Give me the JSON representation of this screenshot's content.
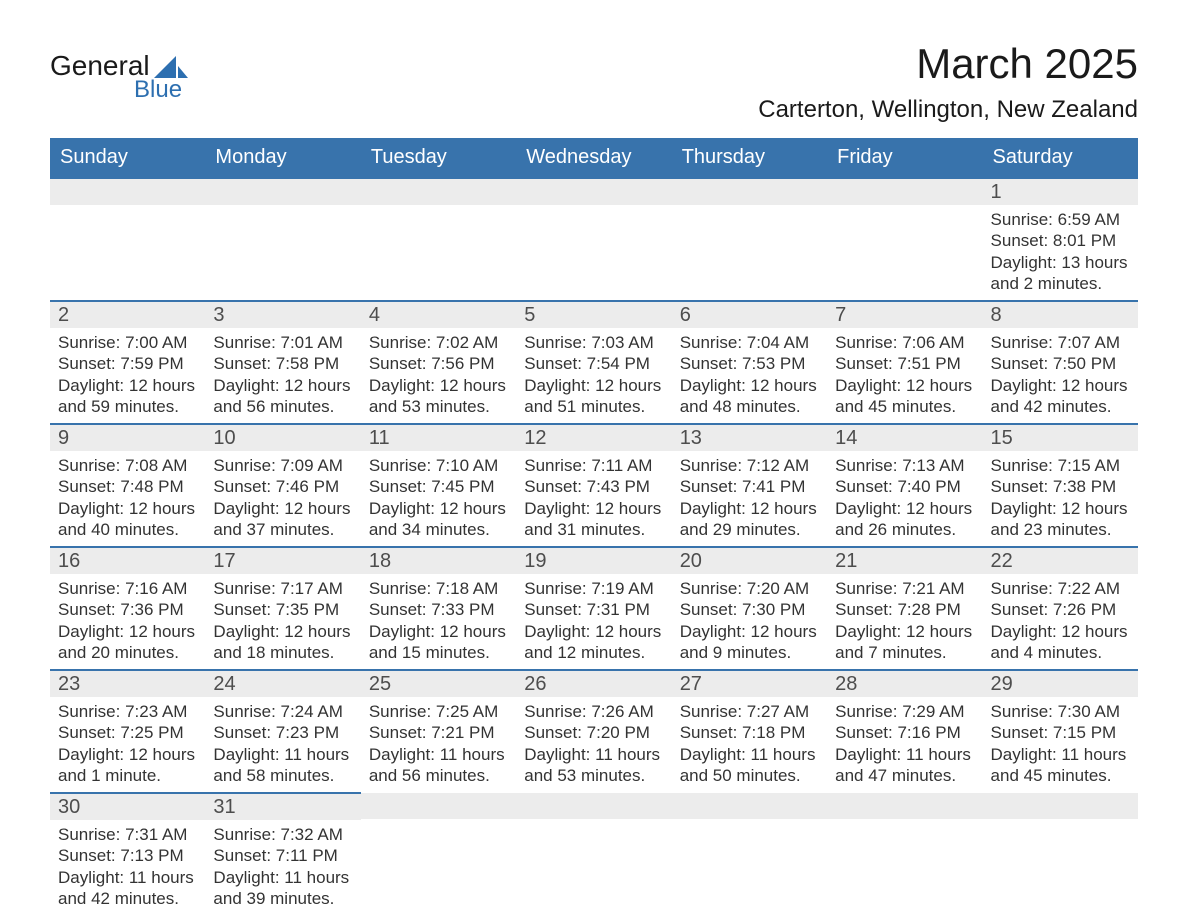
{
  "logo": {
    "text1": "General",
    "text2": "Blue",
    "accent_color": "#2d6fb0"
  },
  "header": {
    "month_title": "March 2025",
    "location": "Carterton, Wellington, New Zealand"
  },
  "colors": {
    "header_bg": "#3873ac",
    "header_text": "#ffffff",
    "daynum_bg": "#ececec",
    "daynum_text": "#4d4d4d",
    "body_text": "#333333",
    "row_border": "#3873ac",
    "page_bg": "#ffffff"
  },
  "typography": {
    "month_title_fontsize": 42,
    "location_fontsize": 24,
    "dayheader_fontsize": 20,
    "daynum_fontsize": 20,
    "cell_fontsize": 17
  },
  "day_headers": [
    "Sunday",
    "Monday",
    "Tuesday",
    "Wednesday",
    "Thursday",
    "Friday",
    "Saturday"
  ],
  "weeks": [
    [
      null,
      null,
      null,
      null,
      null,
      null,
      {
        "n": "1",
        "sunrise": "Sunrise: 6:59 AM",
        "sunset": "Sunset: 8:01 PM",
        "daylight": "Daylight: 13 hours and 2 minutes."
      }
    ],
    [
      {
        "n": "2",
        "sunrise": "Sunrise: 7:00 AM",
        "sunset": "Sunset: 7:59 PM",
        "daylight": "Daylight: 12 hours and 59 minutes."
      },
      {
        "n": "3",
        "sunrise": "Sunrise: 7:01 AM",
        "sunset": "Sunset: 7:58 PM",
        "daylight": "Daylight: 12 hours and 56 minutes."
      },
      {
        "n": "4",
        "sunrise": "Sunrise: 7:02 AM",
        "sunset": "Sunset: 7:56 PM",
        "daylight": "Daylight: 12 hours and 53 minutes."
      },
      {
        "n": "5",
        "sunrise": "Sunrise: 7:03 AM",
        "sunset": "Sunset: 7:54 PM",
        "daylight": "Daylight: 12 hours and 51 minutes."
      },
      {
        "n": "6",
        "sunrise": "Sunrise: 7:04 AM",
        "sunset": "Sunset: 7:53 PM",
        "daylight": "Daylight: 12 hours and 48 minutes."
      },
      {
        "n": "7",
        "sunrise": "Sunrise: 7:06 AM",
        "sunset": "Sunset: 7:51 PM",
        "daylight": "Daylight: 12 hours and 45 minutes."
      },
      {
        "n": "8",
        "sunrise": "Sunrise: 7:07 AM",
        "sunset": "Sunset: 7:50 PM",
        "daylight": "Daylight: 12 hours and 42 minutes."
      }
    ],
    [
      {
        "n": "9",
        "sunrise": "Sunrise: 7:08 AM",
        "sunset": "Sunset: 7:48 PM",
        "daylight": "Daylight: 12 hours and 40 minutes."
      },
      {
        "n": "10",
        "sunrise": "Sunrise: 7:09 AM",
        "sunset": "Sunset: 7:46 PM",
        "daylight": "Daylight: 12 hours and 37 minutes."
      },
      {
        "n": "11",
        "sunrise": "Sunrise: 7:10 AM",
        "sunset": "Sunset: 7:45 PM",
        "daylight": "Daylight: 12 hours and 34 minutes."
      },
      {
        "n": "12",
        "sunrise": "Sunrise: 7:11 AM",
        "sunset": "Sunset: 7:43 PM",
        "daylight": "Daylight: 12 hours and 31 minutes."
      },
      {
        "n": "13",
        "sunrise": "Sunrise: 7:12 AM",
        "sunset": "Sunset: 7:41 PM",
        "daylight": "Daylight: 12 hours and 29 minutes."
      },
      {
        "n": "14",
        "sunrise": "Sunrise: 7:13 AM",
        "sunset": "Sunset: 7:40 PM",
        "daylight": "Daylight: 12 hours and 26 minutes."
      },
      {
        "n": "15",
        "sunrise": "Sunrise: 7:15 AM",
        "sunset": "Sunset: 7:38 PM",
        "daylight": "Daylight: 12 hours and 23 minutes."
      }
    ],
    [
      {
        "n": "16",
        "sunrise": "Sunrise: 7:16 AM",
        "sunset": "Sunset: 7:36 PM",
        "daylight": "Daylight: 12 hours and 20 minutes."
      },
      {
        "n": "17",
        "sunrise": "Sunrise: 7:17 AM",
        "sunset": "Sunset: 7:35 PM",
        "daylight": "Daylight: 12 hours and 18 minutes."
      },
      {
        "n": "18",
        "sunrise": "Sunrise: 7:18 AM",
        "sunset": "Sunset: 7:33 PM",
        "daylight": "Daylight: 12 hours and 15 minutes."
      },
      {
        "n": "19",
        "sunrise": "Sunrise: 7:19 AM",
        "sunset": "Sunset: 7:31 PM",
        "daylight": "Daylight: 12 hours and 12 minutes."
      },
      {
        "n": "20",
        "sunrise": "Sunrise: 7:20 AM",
        "sunset": "Sunset: 7:30 PM",
        "daylight": "Daylight: 12 hours and 9 minutes."
      },
      {
        "n": "21",
        "sunrise": "Sunrise: 7:21 AM",
        "sunset": "Sunset: 7:28 PM",
        "daylight": "Daylight: 12 hours and 7 minutes."
      },
      {
        "n": "22",
        "sunrise": "Sunrise: 7:22 AM",
        "sunset": "Sunset: 7:26 PM",
        "daylight": "Daylight: 12 hours and 4 minutes."
      }
    ],
    [
      {
        "n": "23",
        "sunrise": "Sunrise: 7:23 AM",
        "sunset": "Sunset: 7:25 PM",
        "daylight": "Daylight: 12 hours and 1 minute."
      },
      {
        "n": "24",
        "sunrise": "Sunrise: 7:24 AM",
        "sunset": "Sunset: 7:23 PM",
        "daylight": "Daylight: 11 hours and 58 minutes."
      },
      {
        "n": "25",
        "sunrise": "Sunrise: 7:25 AM",
        "sunset": "Sunset: 7:21 PM",
        "daylight": "Daylight: 11 hours and 56 minutes."
      },
      {
        "n": "26",
        "sunrise": "Sunrise: 7:26 AM",
        "sunset": "Sunset: 7:20 PM",
        "daylight": "Daylight: 11 hours and 53 minutes."
      },
      {
        "n": "27",
        "sunrise": "Sunrise: 7:27 AM",
        "sunset": "Sunset: 7:18 PM",
        "daylight": "Daylight: 11 hours and 50 minutes."
      },
      {
        "n": "28",
        "sunrise": "Sunrise: 7:29 AM",
        "sunset": "Sunset: 7:16 PM",
        "daylight": "Daylight: 11 hours and 47 minutes."
      },
      {
        "n": "29",
        "sunrise": "Sunrise: 7:30 AM",
        "sunset": "Sunset: 7:15 PM",
        "daylight": "Daylight: 11 hours and 45 minutes."
      }
    ],
    [
      {
        "n": "30",
        "sunrise": "Sunrise: 7:31 AM",
        "sunset": "Sunset: 7:13 PM",
        "daylight": "Daylight: 11 hours and 42 minutes."
      },
      {
        "n": "31",
        "sunrise": "Sunrise: 7:32 AM",
        "sunset": "Sunset: 7:11 PM",
        "daylight": "Daylight: 11 hours and 39 minutes."
      },
      null,
      null,
      null,
      null,
      null
    ]
  ]
}
